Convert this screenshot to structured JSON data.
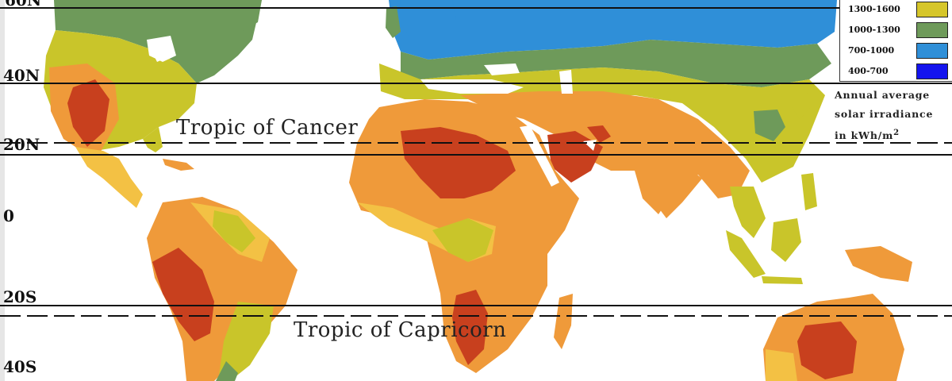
{
  "latitude_labels": [
    "60N",
    "40N",
    "20N",
    "0",
    "20S",
    "40S"
  ],
  "tropic_labels": {
    "cancer": "Tropic of Cancer",
    "capricorn": "Tropic of Capricorn"
  },
  "legend": {
    "items": [
      {
        "label": "1300-1600",
        "color": "#d6c62a"
      },
      {
        "label": "1000-1300",
        "color": "#6e9a5a"
      },
      {
        "label": "700-1000",
        "color": "#2f8fd8"
      },
      {
        "label": "400-700",
        "color": "#1414ee"
      }
    ],
    "caption_line1": "Annual average",
    "caption_line2": "solar irradiance",
    "caption_line3": "in kWh/m",
    "caption_sup": "2"
  },
  "zone_colors": {
    "dark_red": "#c8401e",
    "orange": "#ef9a3a",
    "yellow_orange": "#f3c144",
    "yellow_green": "#c9c52a",
    "green": "#6e9a5a",
    "blue": "#2f8fd8",
    "dark_blue": "#1414ee"
  }
}
